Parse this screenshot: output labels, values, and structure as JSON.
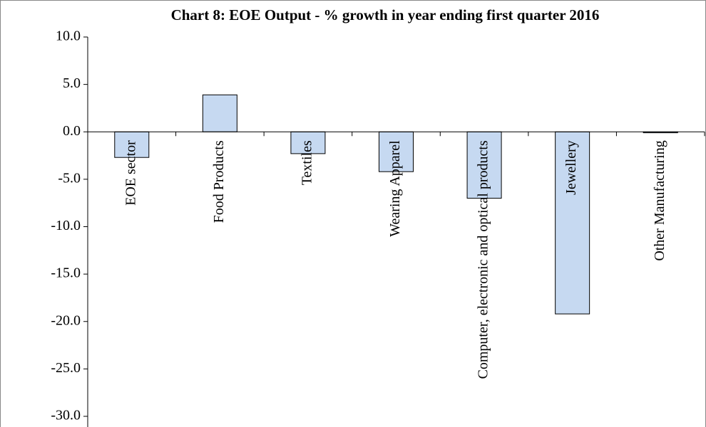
{
  "chart_data": {
    "type": "bar",
    "title": "Chart 8: EOE Output - % growth in year ending first quarter 2016",
    "categories": [
      "EOE sector",
      "Food Products",
      "Textiles",
      "Wearing Apparel",
      "Computer, electronic and optical products",
      "Jewellery",
      "Other Manufacturing"
    ],
    "values": [
      -2.7,
      3.9,
      -2.3,
      -4.2,
      -7.0,
      -19.2,
      -0.1
    ],
    "color": "#c6d9f1",
    "ylim": [
      -30,
      10
    ],
    "yticks": [
      {
        "value": -30,
        "label": "-30.0"
      },
      {
        "value": -25,
        "label": "-25.0"
      },
      {
        "value": -20,
        "label": "-20.0"
      },
      {
        "value": -15,
        "label": "-15.0"
      },
      {
        "value": -10,
        "label": "-10.0"
      },
      {
        "value": -5,
        "label": "-5.0"
      },
      {
        "value": 0,
        "label": "0.0"
      },
      {
        "value": 5,
        "label": "5.0"
      },
      {
        "value": 10,
        "label": "10.0"
      }
    ],
    "grid": false
  }
}
